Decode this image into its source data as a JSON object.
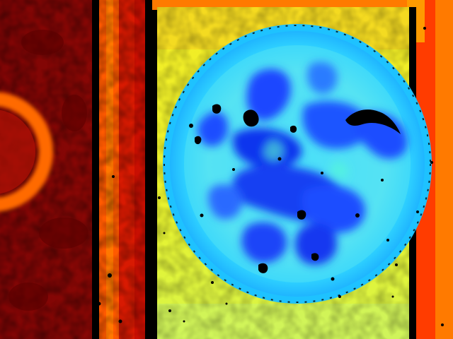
{
  "image": {
    "kind": "depth-map",
    "colormap": "jet",
    "palette": {
      "far": "#8b0000",
      "far_mid": "#d21400",
      "mid_far": "#ff5a00",
      "mid": "#ff9a00",
      "mid_near": "#f6f21e",
      "near_mid": "#2fd2ff",
      "near": "#1e54ff",
      "nearest": "#0e1bd0",
      "invalid": "#000000"
    },
    "regions": [
      {
        "name": "background-wall",
        "depth_level": "far"
      },
      {
        "name": "left-ring-object",
        "depth_level": "mid"
      },
      {
        "name": "left-pillar-strip",
        "depth_level": "far_mid"
      },
      {
        "name": "board-surface",
        "depth_level": "mid_near"
      },
      {
        "name": "round-plate",
        "depth_level": "near_mid"
      },
      {
        "name": "food-blobs",
        "depth_level": "near"
      },
      {
        "name": "right-edge-strip",
        "depth_level": "mid_far"
      },
      {
        "name": "invalid-pixels",
        "depth_level": "invalid"
      }
    ]
  }
}
